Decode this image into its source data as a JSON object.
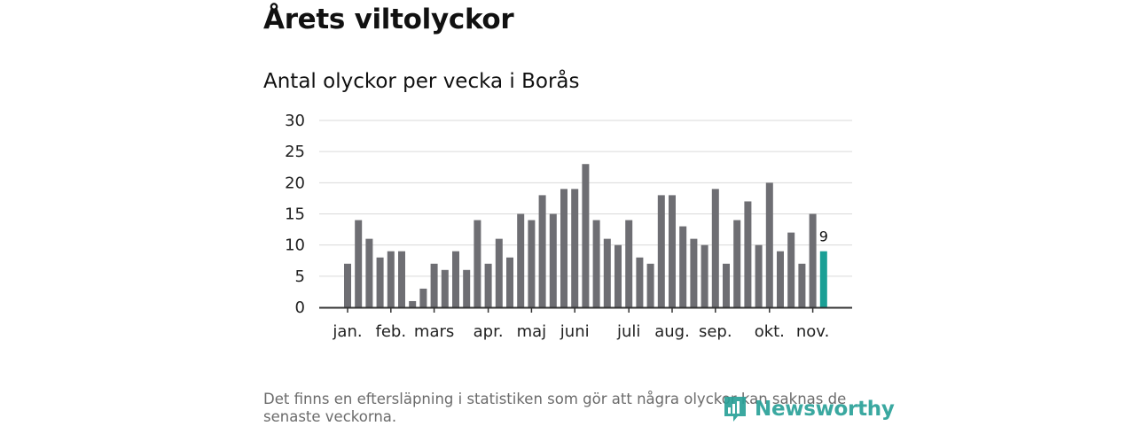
{
  "header": {
    "title": "Årets viltolyckor",
    "subtitle": "Antal olyckor per vecka i Borås"
  },
  "footnote": "Det finns en eftersläpning i statistiken som gör att några olyckor kan saknas de senaste veckorna.",
  "brand": {
    "name": "Newsworthy",
    "color": "#2aa198"
  },
  "chart_data": {
    "type": "bar",
    "title": "Antal olyckor per vecka i Borås",
    "xlabel": "",
    "ylabel": "",
    "ylim": [
      0,
      30
    ],
    "yticks": [
      0,
      5,
      10,
      15,
      20,
      25,
      30
    ],
    "grid": true,
    "month_labels": [
      {
        "label": "jan.",
        "week": 1
      },
      {
        "label": "feb.",
        "week": 5
      },
      {
        "label": "mars",
        "week": 9
      },
      {
        "label": "apr.",
        "week": 14
      },
      {
        "label": "maj",
        "week": 18
      },
      {
        "label": "juni",
        "week": 22
      },
      {
        "label": "juli",
        "week": 27
      },
      {
        "label": "aug.",
        "week": 31
      },
      {
        "label": "sep.",
        "week": 35
      },
      {
        "label": "okt.",
        "week": 40
      },
      {
        "label": "nov.",
        "week": 44
      }
    ],
    "weeks": [
      1,
      2,
      3,
      4,
      5,
      6,
      7,
      8,
      9,
      10,
      11,
      12,
      13,
      14,
      15,
      16,
      17,
      18,
      19,
      20,
      21,
      22,
      23,
      24,
      25,
      26,
      27,
      28,
      29,
      30,
      31,
      32,
      33,
      34,
      35,
      36,
      37,
      38,
      39,
      40,
      41,
      42,
      43,
      44,
      45
    ],
    "values": [
      7,
      14,
      11,
      8,
      9,
      9,
      1,
      3,
      7,
      6,
      9,
      6,
      14,
      7,
      11,
      8,
      15,
      14,
      18,
      15,
      19,
      19,
      23,
      14,
      11,
      10,
      14,
      8,
      7,
      18,
      18,
      13,
      11,
      10,
      19,
      7,
      14,
      17,
      10,
      20,
      9,
      12,
      7,
      15,
      9
    ],
    "highlight_last": {
      "value": 9,
      "label": "9"
    },
    "colors": {
      "bar": "#6e6e73",
      "highlight": "#1a9f95",
      "grid": "#d9d9d9",
      "axis": "#333333"
    }
  }
}
